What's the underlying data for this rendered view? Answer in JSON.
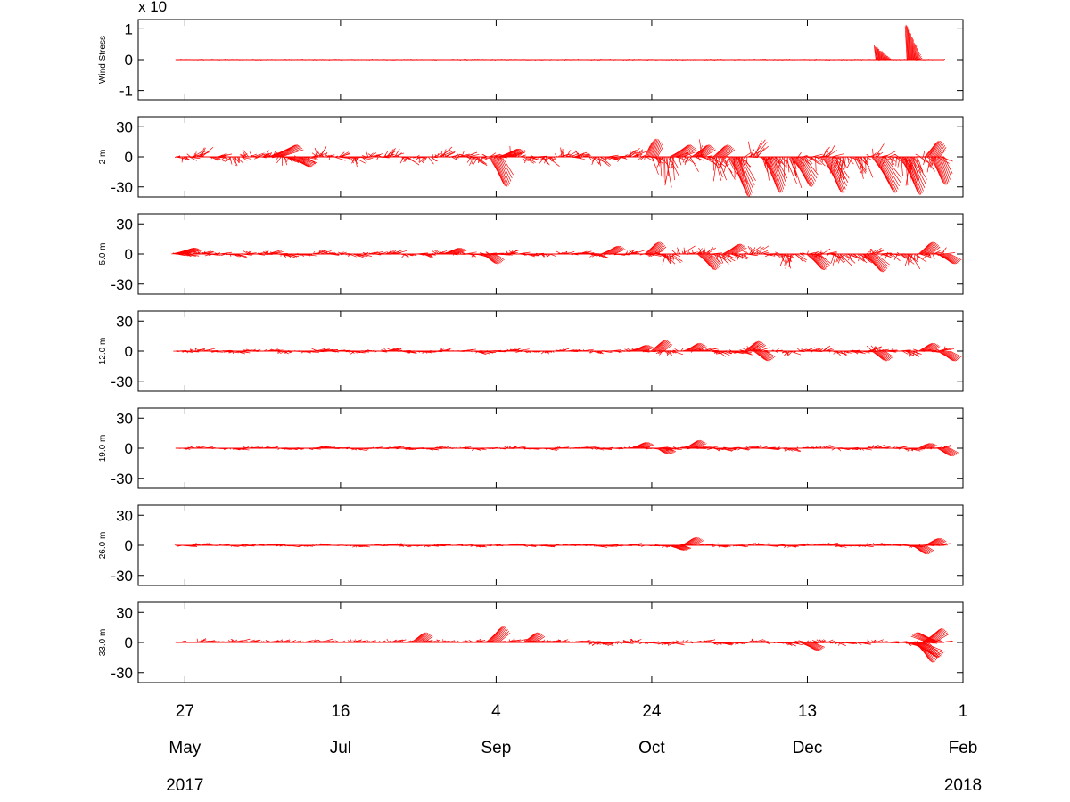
{
  "colors": {
    "vectors": "#ff0000",
    "axes": "#000000"
  },
  "chart_data": {
    "type": "line",
    "x_ticks": [
      {
        "day": "27",
        "month": "May",
        "year": "2017",
        "date": "2017-05-27"
      },
      {
        "day": "16",
        "month": "Jul",
        "year": "",
        "date": "2017-07-16"
      },
      {
        "day": "4",
        "month": "Sep",
        "year": "",
        "date": "2017-09-04"
      },
      {
        "day": "24",
        "month": "Oct",
        "year": "",
        "date": "2017-10-24"
      },
      {
        "day": "13",
        "month": "Dec",
        "year": "",
        "date": "2017-12-13"
      },
      {
        "day": "1",
        "month": "Feb",
        "year": "2018",
        "date": "2018-02-01"
      }
    ],
    "x_range": [
      "2017-05-12",
      "2018-02-01"
    ],
    "grid": false,
    "panels": [
      {
        "id": "wind",
        "ylabel": "Wind Stress",
        "exponent_label": "x 10",
        "ylim": [
          -1.3,
          1.3
        ],
        "yticks": [
          1,
          0,
          -1
        ],
        "ytick_labels": [
          "1",
          "0",
          "-1"
        ],
        "data_start": "2017-05-24",
        "data_end": "2018-01-26",
        "bursts": [
          {
            "date": "2018-01-04",
            "peak": 0.5
          },
          {
            "date": "2018-01-14",
            "peak": 1.25
          }
        ]
      },
      {
        "id": "d2",
        "ylabel": "2 m",
        "ylim": [
          -40,
          40
        ],
        "yticks": [
          30,
          0,
          -30
        ],
        "ytick_labels": [
          "30",
          "0",
          "-30"
        ],
        "data_start": "2017-05-24",
        "data_end": "2018-01-26",
        "events": [
          {
            "date": "2017-06-25",
            "u": 8,
            "v": 12
          },
          {
            "date": "2017-07-01",
            "u": 6,
            "v": -10
          },
          {
            "date": "2017-09-04",
            "u": 4,
            "v": -30
          },
          {
            "date": "2017-09-07",
            "u": 5,
            "v": 8
          },
          {
            "date": "2017-10-24",
            "u": 2,
            "v": 18
          },
          {
            "date": "2017-11-01",
            "u": 5,
            "v": 12
          },
          {
            "date": "2017-11-08",
            "u": 4,
            "v": 12
          },
          {
            "date": "2017-11-15",
            "u": 3,
            "v": 12
          },
          {
            "date": "2017-11-20",
            "u": 5,
            "v": -40
          },
          {
            "date": "2017-12-01",
            "u": 4,
            "v": -36
          },
          {
            "date": "2017-12-10",
            "u": 5,
            "v": -30
          },
          {
            "date": "2017-12-20",
            "u": 5,
            "v": -36
          },
          {
            "date": "2018-01-05",
            "u": 6,
            "v": -36
          },
          {
            "date": "2018-01-14",
            "u": 5,
            "v": -38
          },
          {
            "date": "2018-01-22",
            "u": 3,
            "v": 16
          },
          {
            "date": "2018-01-24",
            "u": 3,
            "v": -28
          }
        ]
      },
      {
        "id": "d5",
        "ylabel": "5.0 m",
        "ylim": [
          -40,
          40
        ],
        "yticks": [
          30,
          0,
          -30
        ],
        "ytick_labels": [
          "30",
          "0",
          "-30"
        ],
        "data_start": "2017-05-24",
        "data_end": "2018-01-26",
        "events": [
          {
            "date": "2017-05-25",
            "u": 6,
            "v": 6
          },
          {
            "date": "2017-08-20",
            "u": 4,
            "v": 6
          },
          {
            "date": "2017-09-02",
            "u": 3,
            "v": -10
          },
          {
            "date": "2017-10-10",
            "u": 4,
            "v": 8
          },
          {
            "date": "2017-10-24",
            "u": 3,
            "v": 12
          },
          {
            "date": "2017-11-10",
            "u": 4,
            "v": -16
          },
          {
            "date": "2017-11-18",
            "u": 4,
            "v": 10
          },
          {
            "date": "2017-12-15",
            "u": 4,
            "v": -16
          },
          {
            "date": "2018-01-02",
            "u": 5,
            "v": -18
          },
          {
            "date": "2018-01-20",
            "u": 3,
            "v": 12
          },
          {
            "date": "2018-01-26",
            "u": 4,
            "v": -10
          }
        ]
      },
      {
        "id": "d12",
        "ylabel": "12.0 m",
        "ylim": [
          -40,
          40
        ],
        "yticks": [
          30,
          0,
          -30
        ],
        "ytick_labels": [
          "30",
          "0",
          "-30"
        ],
        "data_start": "2017-05-24",
        "data_end": "2018-01-26",
        "events": [
          {
            "date": "2017-10-20",
            "u": 3,
            "v": 6
          },
          {
            "date": "2017-10-26",
            "u": 3,
            "v": 11
          },
          {
            "date": "2017-11-06",
            "u": 3,
            "v": 8
          },
          {
            "date": "2017-11-25",
            "u": 3,
            "v": 10
          },
          {
            "date": "2017-11-28",
            "u": 3,
            "v": -10
          },
          {
            "date": "2018-01-05",
            "u": 3,
            "v": -10
          },
          {
            "date": "2018-01-20",
            "u": 3,
            "v": 8
          },
          {
            "date": "2018-01-26",
            "u": 4,
            "v": -10
          }
        ]
      },
      {
        "id": "d19",
        "ylabel": "19.0 m",
        "ylim": [
          -40,
          40
        ],
        "yticks": [
          30,
          0,
          -30
        ],
        "ytick_labels": [
          "30",
          "0",
          "-30"
        ],
        "data_start": "2017-05-24",
        "data_end": "2018-01-26",
        "events": [
          {
            "date": "2017-10-20",
            "u": 3,
            "v": 6
          },
          {
            "date": "2017-11-06",
            "u": 3,
            "v": 8
          },
          {
            "date": "2017-10-28",
            "u": 2,
            "v": -6
          },
          {
            "date": "2018-01-20",
            "u": 2,
            "v": 5
          },
          {
            "date": "2018-01-26",
            "u": 3,
            "v": -8
          }
        ]
      },
      {
        "id": "d26",
        "ylabel": "26.0 m",
        "ylim": [
          -40,
          40
        ],
        "yticks": [
          30,
          0,
          -30
        ],
        "ytick_labels": [
          "30",
          "0",
          "-30"
        ],
        "data_start": "2017-05-24",
        "data_end": "2018-01-26",
        "events": [
          {
            "date": "2017-11-05",
            "u": 3,
            "v": 8
          },
          {
            "date": "2017-11-01",
            "u": 3,
            "v": -5
          },
          {
            "date": "2018-01-18",
            "u": 3,
            "v": -9
          },
          {
            "date": "2018-01-22",
            "u": 3,
            "v": 7
          }
        ]
      },
      {
        "id": "d33",
        "ylabel": "33.0 m",
        "ylim": [
          -40,
          40
        ],
        "yticks": [
          30,
          0,
          -30
        ],
        "ytick_labels": [
          "30",
          "0",
          "-30"
        ],
        "data_start": "2017-05-24",
        "data_end": "2018-01-26",
        "events": [
          {
            "date": "2017-08-10",
            "u": 3,
            "v": 10
          },
          {
            "date": "2017-09-03",
            "u": 4,
            "v": 16
          },
          {
            "date": "2017-09-15",
            "u": 3,
            "v": 10
          },
          {
            "date": "2017-12-13",
            "u": 4,
            "v": -8
          },
          {
            "date": "2018-01-17",
            "u": 8,
            "v": -15
          },
          {
            "date": "2018-01-19",
            "u": 4,
            "v": -20
          },
          {
            "date": "2018-01-21",
            "u": 5,
            "v": 14
          },
          {
            "date": "2018-01-23",
            "u": -6,
            "v": 10
          }
        ]
      }
    ]
  }
}
